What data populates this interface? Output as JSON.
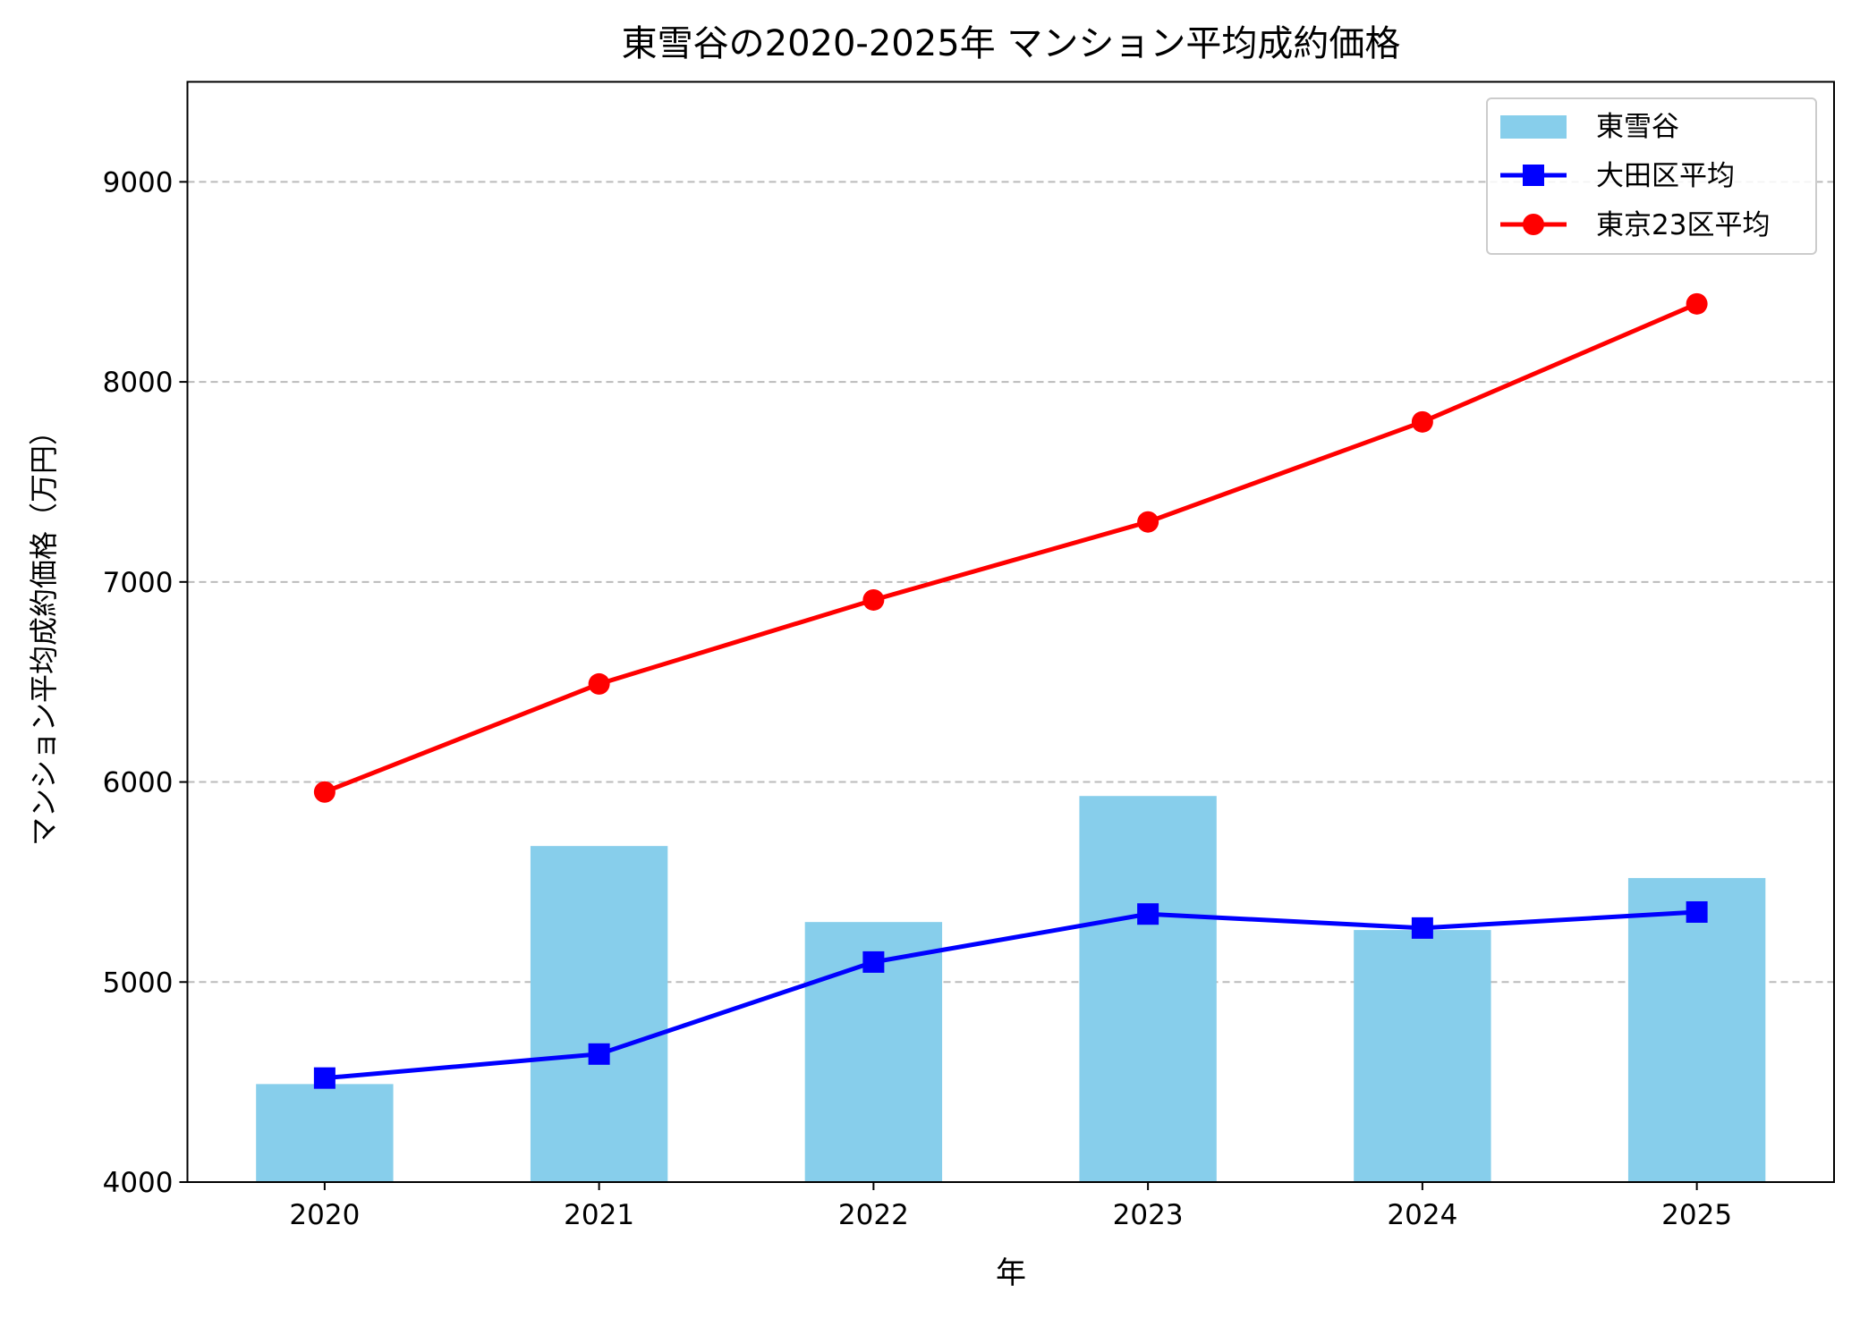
{
  "chart_data": {
    "type": "bar+line",
    "title": "東雪谷の2020-2025年 マンション平均成約価格",
    "xlabel": "年",
    "ylabel": "マンション平均成約価格（万円）",
    "categories": [
      "2020",
      "2021",
      "2022",
      "2023",
      "2024",
      "2025"
    ],
    "ylim": [
      4000,
      9500
    ],
    "yticks": [
      4000,
      5000,
      6000,
      7000,
      8000,
      9000
    ],
    "grid": "horizontal dashed",
    "legend_position": "top-right",
    "series": [
      {
        "name": "東雪谷",
        "kind": "bar",
        "color": "#87CEEB",
        "values": [
          4490,
          5680,
          5300,
          5930,
          5260,
          5520
        ]
      },
      {
        "name": "大田区平均",
        "kind": "line",
        "marker": "square",
        "color": "#0000FF",
        "values": [
          4520,
          4640,
          5100,
          5340,
          5270,
          5350
        ]
      },
      {
        "name": "東京23区平均",
        "kind": "line",
        "marker": "circle",
        "color": "#FF0000",
        "values": [
          5950,
          6490,
          6910,
          7300,
          7800,
          8390
        ]
      }
    ]
  }
}
